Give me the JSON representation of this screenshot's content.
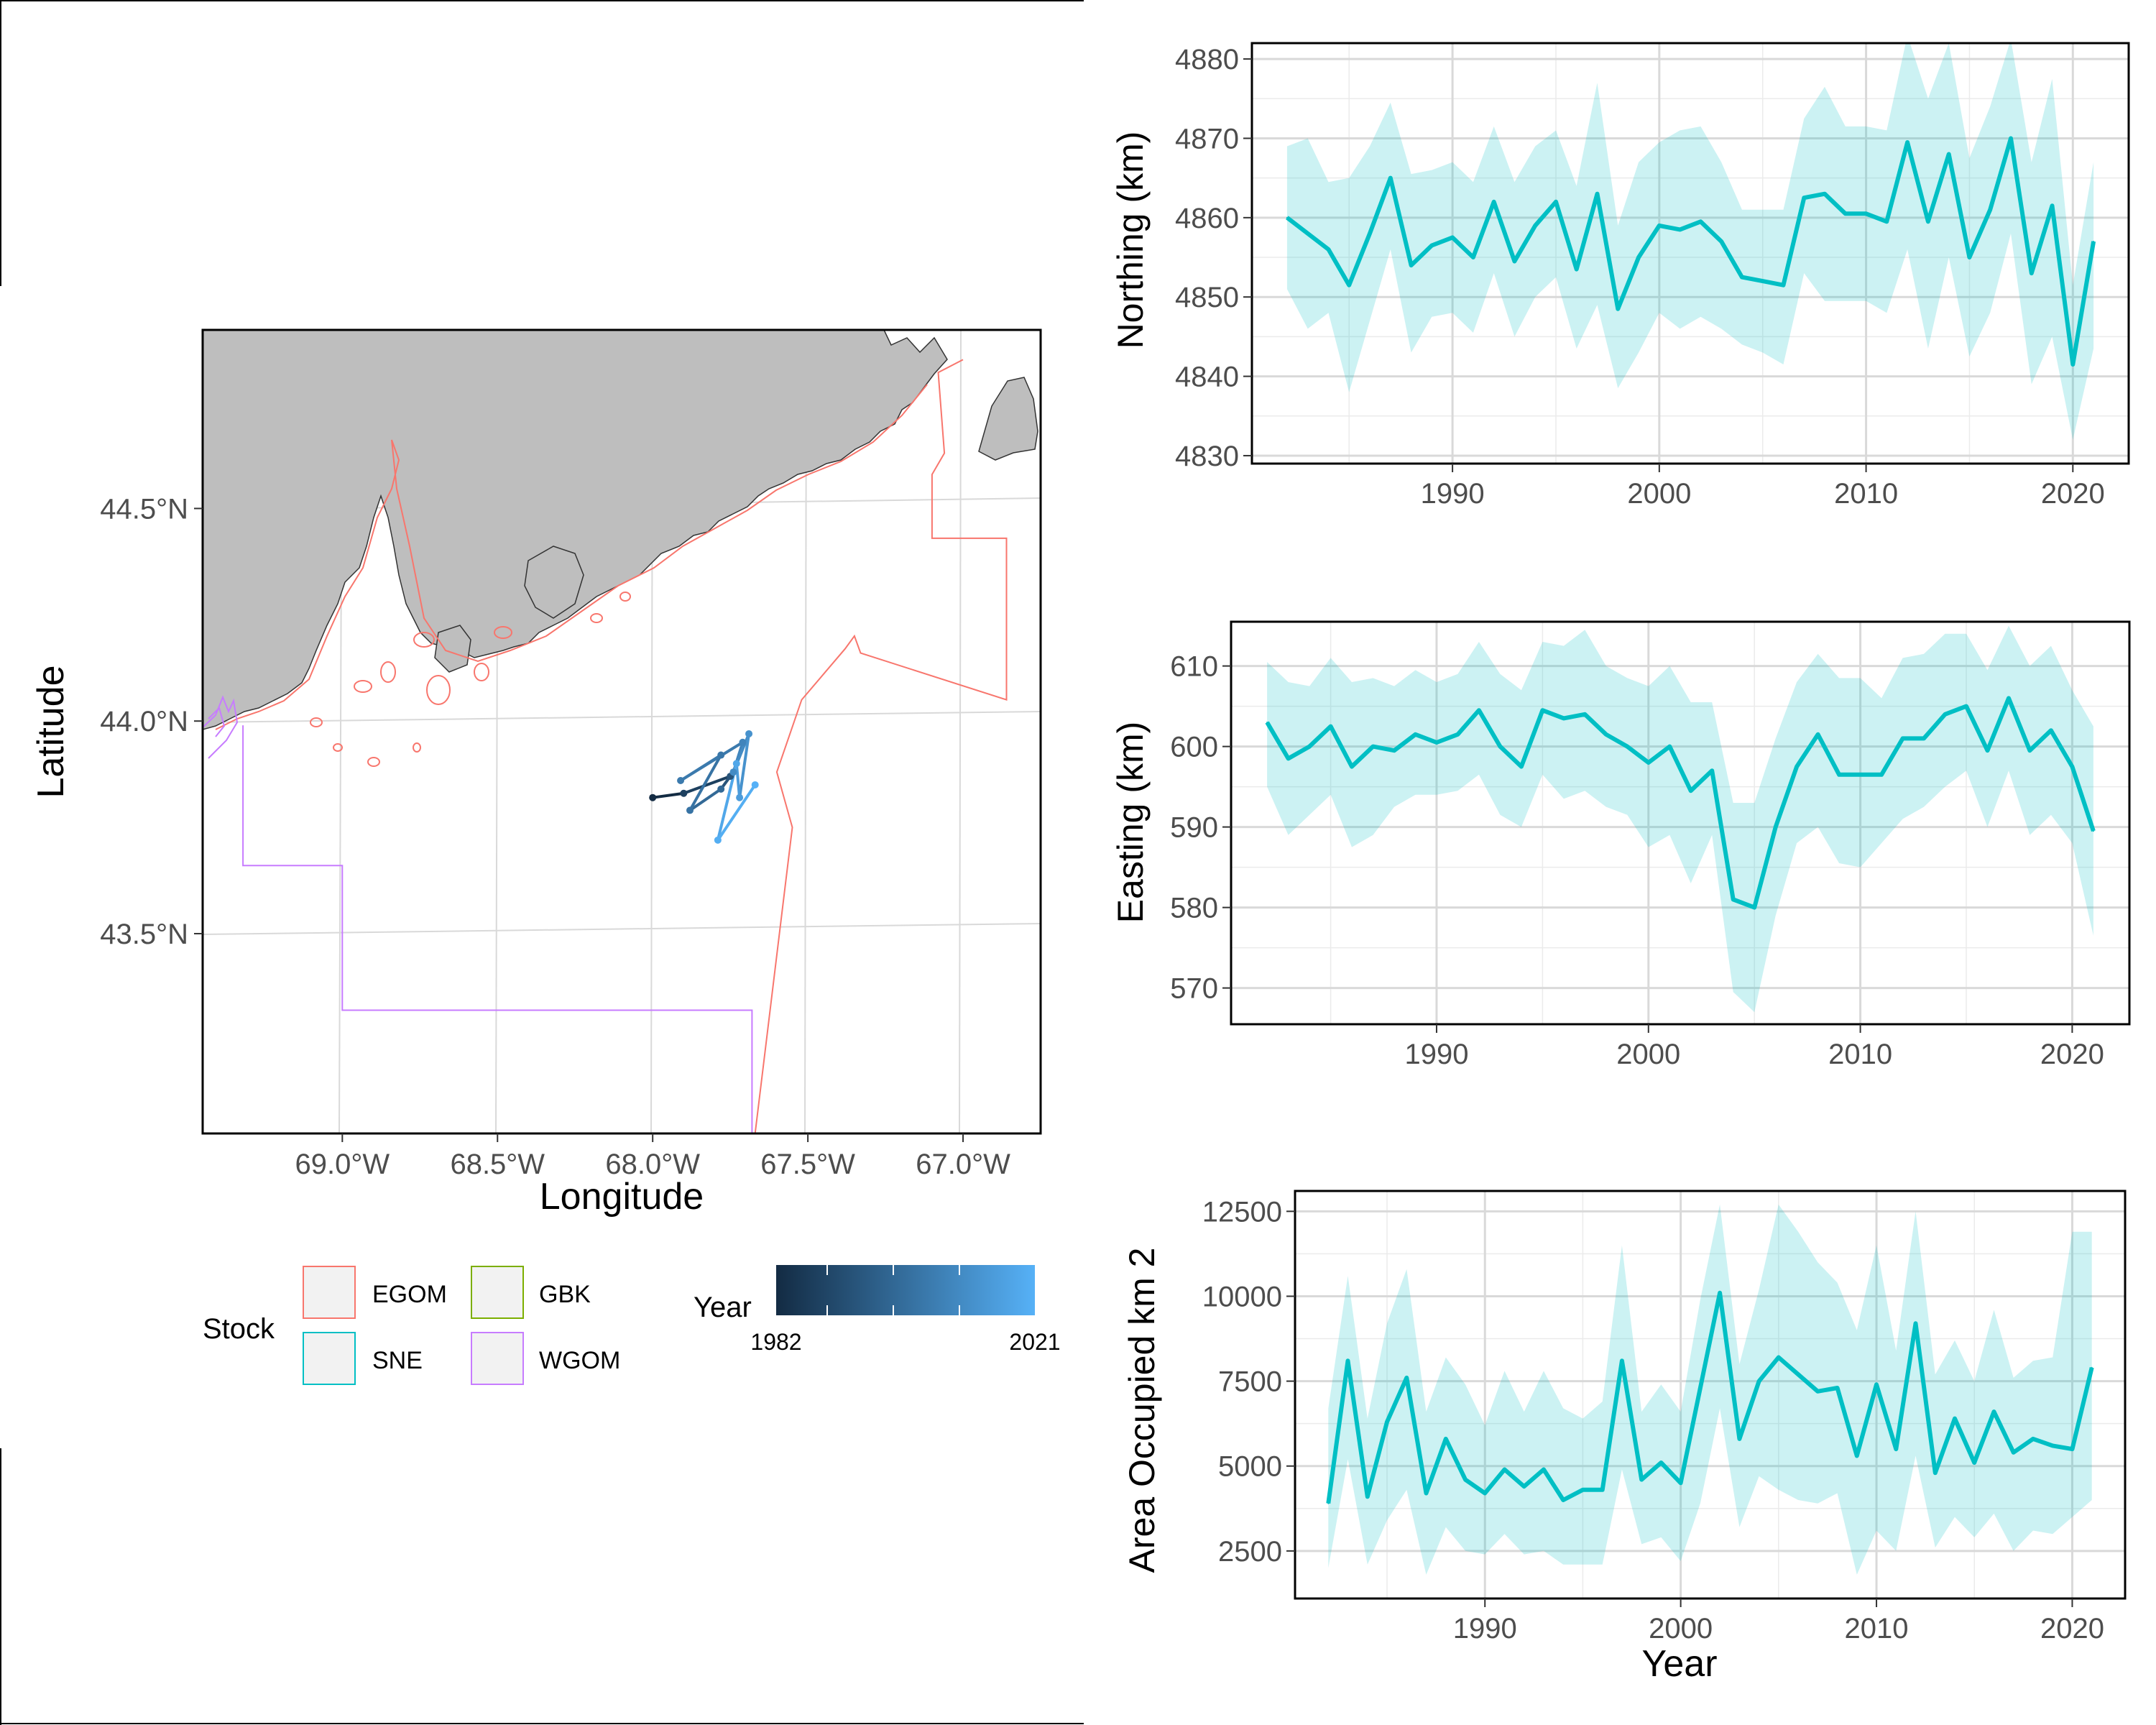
{
  "colors": {
    "line": "#00BFC4",
    "ribbon": "#00BFC4",
    "land": "#BEBEBE",
    "egom": "#F8766D",
    "sne": "#00BFC4",
    "gbk": "#7CAE00",
    "wgom": "#C77CFF",
    "grid": "#D9D9D9",
    "axis_text": "#4D4D4D",
    "year_low": "#132B43",
    "year_high": "#56B1F7"
  },
  "chart_data": [
    {
      "type": "map",
      "xlabel": "Longitude",
      "ylabel": "Latitude",
      "xlim": [
        -69.45,
        -66.75
      ],
      "ylim": [
        43.03,
        44.92
      ],
      "x_ticks": [
        -69.0,
        -68.5,
        -68.0,
        -67.5,
        -67.0
      ],
      "x_tick_labels": [
        "69.0°W",
        "68.5°W",
        "68.0°W",
        "67.5°W",
        "67.0°W"
      ],
      "y_ticks": [
        43.5,
        44.0,
        44.5
      ],
      "y_tick_labels": [
        "43.5°N",
        "44.0°N",
        "44.5°N"
      ],
      "stock_boundaries": {
        "WGOM": [
          [
            -69.32,
            43.99
          ],
          [
            -69.32,
            43.66
          ],
          [
            -69.0,
            43.66
          ],
          [
            -69.0,
            43.32
          ],
          [
            -67.68,
            43.32
          ],
          [
            -67.68,
            43.03
          ]
        ],
        "EGOM": [
          [
            -67.67,
            43.03
          ],
          [
            -67.55,
            43.75
          ],
          [
            -67.6,
            43.88
          ],
          [
            -67.52,
            44.05
          ],
          [
            -67.38,
            44.17
          ],
          [
            -67.35,
            44.2
          ],
          [
            -67.33,
            44.16
          ],
          [
            -66.86,
            44.05
          ],
          [
            -66.86,
            44.43
          ],
          [
            -67.1,
            44.43
          ],
          [
            -67.1,
            44.58
          ],
          [
            -67.06,
            44.63
          ],
          [
            -67.08,
            44.82
          ],
          [
            -67.0,
            44.85
          ]
        ]
      },
      "centroid_track": [
        {
          "year": 1982,
          "lon": -68.0,
          "lat": 43.82
        },
        {
          "year": 1988,
          "lon": -67.9,
          "lat": 43.83
        },
        {
          "year": 1994,
          "lon": -67.75,
          "lat": 43.87
        },
        {
          "year": 2000,
          "lon": -67.78,
          "lat": 43.84
        },
        {
          "year": 2003,
          "lon": -67.88,
          "lat": 43.79
        },
        {
          "year": 2004,
          "lon": -67.78,
          "lat": 43.92
        },
        {
          "year": 2005,
          "lon": -67.91,
          "lat": 43.86
        },
        {
          "year": 2008,
          "lon": -67.71,
          "lat": 43.95
        },
        {
          "year": 2010,
          "lon": -67.74,
          "lat": 43.88
        },
        {
          "year": 2012,
          "lon": -67.69,
          "lat": 43.97
        },
        {
          "year": 2015,
          "lon": -67.72,
          "lat": 43.82
        },
        {
          "year": 2018,
          "lon": -67.73,
          "lat": 43.9
        },
        {
          "year": 2020,
          "lon": -67.79,
          "lat": 43.72
        },
        {
          "year": 2021,
          "lon": -67.67,
          "lat": 43.85
        }
      ]
    },
    {
      "type": "line",
      "title": "",
      "xlabel": "",
      "ylabel": "Northing (km)",
      "xlim": [
        1980.3,
        2022.7
      ],
      "ylim": [
        4829,
        4882
      ],
      "x_ticks": [
        1990,
        2000,
        2010,
        2020
      ],
      "y_ticks": [
        4830,
        4840,
        4850,
        4860,
        4870,
        4880
      ],
      "x": [
        1982,
        1983,
        1984,
        1985,
        1986,
        1987,
        1988,
        1989,
        1990,
        1991,
        1992,
        1993,
        1994,
        1995,
        1996,
        1997,
        1998,
        1999,
        2000,
        2001,
        2002,
        2003,
        2004,
        2005,
        2006,
        2007,
        2008,
        2009,
        2010,
        2011,
        2012,
        2013,
        2014,
        2015,
        2016,
        2017,
        2018,
        2019,
        2020,
        2021
      ],
      "series": [
        {
          "name": "estimate",
          "values": [
            4860,
            4858,
            4856,
            4851.5,
            4858,
            4865,
            4854,
            4856.5,
            4857.5,
            4855,
            4862,
            4854.5,
            4859,
            4862,
            4853.5,
            4863,
            4848.5,
            4855,
            4859,
            4858.5,
            4859.5,
            4857,
            4852.5,
            4852,
            4851.5,
            4862.5,
            4863,
            4860.5,
            4860.5,
            4859.5,
            4869.5,
            4859.5,
            4868,
            4855,
            4861,
            4870,
            4853,
            4861.5,
            4841.5,
            4857
          ]
        },
        {
          "name": "lower",
          "values": [
            4851,
            4846,
            4848,
            4838,
            4847,
            4856,
            4843,
            4847.5,
            4848,
            4845.5,
            4853,
            4845,
            4850,
            4852.5,
            4843.5,
            4849,
            4838.5,
            4843,
            4848,
            4846,
            4847.5,
            4846,
            4844,
            4843,
            4841.5,
            4853,
            4849.5,
            4849.5,
            4849.5,
            4848,
            4856,
            4843.5,
            4855,
            4842.5,
            4848,
            4858,
            4839,
            4845,
            4832,
            4843.5
          ]
        },
        {
          "name": "upper",
          "values": [
            4869,
            4870,
            4864.5,
            4865,
            4869,
            4874.5,
            4865.5,
            4866,
            4867,
            4864.5,
            4871.5,
            4864.5,
            4869,
            4871,
            4864,
            4877,
            4859,
            4867,
            4869.5,
            4871,
            4871.5,
            4867,
            4861,
            4861,
            4861,
            4872.5,
            4876.5,
            4871.5,
            4871.5,
            4871,
            4883,
            4875,
            4882,
            4867.5,
            4874,
            4882.5,
            4867,
            4877.5,
            4851.5,
            4867
          ]
        }
      ]
    },
    {
      "type": "line",
      "title": "",
      "xlabel": "",
      "ylabel": "Easting (km)",
      "xlim": [
        1980.3,
        2022.7
      ],
      "ylim": [
        565.5,
        615.5
      ],
      "x_ticks": [
        1990,
        2000,
        2010,
        2020
      ],
      "y_ticks": [
        570,
        580,
        590,
        600,
        610
      ],
      "x": [
        1982,
        1983,
        1984,
        1985,
        1986,
        1987,
        1988,
        1989,
        1990,
        1991,
        1992,
        1993,
        1994,
        1995,
        1996,
        1997,
        1998,
        1999,
        2000,
        2001,
        2002,
        2003,
        2004,
        2005,
        2006,
        2007,
        2008,
        2009,
        2010,
        2011,
        2012,
        2013,
        2014,
        2015,
        2016,
        2017,
        2018,
        2019,
        2020,
        2021
      ],
      "series": [
        {
          "name": "estimate",
          "values": [
            603,
            598.5,
            600,
            602.5,
            597.5,
            600,
            599.5,
            601.5,
            600.5,
            601.5,
            604.5,
            600,
            597.5,
            604.5,
            603.5,
            604,
            601.5,
            600,
            598,
            600,
            594.5,
            597,
            581,
            580,
            590,
            597.5,
            601.5,
            596.5,
            596.5,
            596.5,
            601,
            601,
            604,
            605,
            599.5,
            606,
            599.5,
            602,
            597.5,
            589.5
          ]
        },
        {
          "name": "lower",
          "values": [
            595,
            589,
            591.5,
            594,
            587.5,
            589,
            592.5,
            594,
            594,
            594.5,
            596.5,
            591.5,
            590,
            596.5,
            593.5,
            594.5,
            592.5,
            591.5,
            587.5,
            589,
            583,
            589,
            569.5,
            567,
            579,
            588,
            590,
            585.5,
            585,
            588,
            591,
            592.5,
            595,
            597,
            590,
            597,
            589,
            591.5,
            588,
            576.5
          ]
        },
        {
          "name": "upper",
          "values": [
            610.5,
            608,
            607.5,
            611,
            608,
            608.5,
            607.5,
            609.5,
            608,
            609,
            613,
            609,
            607,
            613,
            612.5,
            614.5,
            610,
            608.5,
            607.5,
            610,
            605.5,
            605.5,
            593,
            593,
            601,
            608,
            611.5,
            608.5,
            608.5,
            606,
            611,
            611.5,
            614,
            614,
            609.5,
            615,
            610,
            612.5,
            607,
            602.5
          ]
        }
      ]
    },
    {
      "type": "line",
      "title": "",
      "xlabel": "Year",
      "ylabel": "Area Occupied km 2",
      "xlim": [
        1980.3,
        2022.7
      ],
      "ylim": [
        1100,
        13100
      ],
      "x_ticks": [
        1990,
        2000,
        2010,
        2020
      ],
      "y_ticks": [
        2500,
        5000,
        7500,
        10000,
        12500
      ],
      "x": [
        1982,
        1983,
        1984,
        1985,
        1986,
        1987,
        1988,
        1989,
        1990,
        1991,
        1992,
        1993,
        1994,
        1995,
        1996,
        1997,
        1998,
        1999,
        2000,
        2001,
        2002,
        2003,
        2004,
        2005,
        2006,
        2007,
        2008,
        2009,
        2010,
        2011,
        2012,
        2013,
        2014,
        2015,
        2016,
        2017,
        2018,
        2019,
        2020,
        2021
      ],
      "series": [
        {
          "name": "estimate",
          "values": [
            3900,
            8100,
            4100,
            6300,
            7600,
            4200,
            5800,
            4600,
            4200,
            4900,
            4400,
            4900,
            4000,
            4300,
            4300,
            8100,
            4600,
            5100,
            4500,
            7300,
            10100,
            5800,
            7500,
            8200,
            7700,
            7200,
            7300,
            5300,
            7400,
            5500,
            9200,
            4800,
            6400,
            5100,
            6600,
            5400,
            5800,
            5600,
            5500,
            7900
          ]
        },
        {
          "name": "lower",
          "values": [
            2000,
            5200,
            2100,
            3400,
            4300,
            1800,
            3200,
            2500,
            2400,
            3000,
            2400,
            2500,
            2100,
            2100,
            2100,
            4900,
            2700,
            2900,
            2200,
            3900,
            6700,
            3200,
            4700,
            4300,
            4000,
            3900,
            4200,
            1800,
            3100,
            2500,
            5300,
            2600,
            3500,
            2900,
            3600,
            2500,
            3100,
            3000,
            3500,
            4000
          ]
        },
        {
          "name": "upper",
          "values": [
            6700,
            10600,
            6400,
            9200,
            10800,
            6600,
            8200,
            7400,
            6200,
            7800,
            6600,
            7800,
            6700,
            6400,
            6900,
            11500,
            6600,
            7400,
            6600,
            9900,
            12700,
            8000,
            10200,
            12700,
            11900,
            11000,
            10400,
            9000,
            11500,
            8400,
            12500,
            7700,
            8700,
            7500,
            9600,
            7600,
            8100,
            8200,
            11900,
            11900
          ]
        }
      ]
    }
  ],
  "map_legend": {
    "stock_title": "Stock",
    "stock_entries": [
      "EGOM",
      "GBK",
      "SNE",
      "WGOM"
    ],
    "year_title": "Year",
    "year_min_label": "1982",
    "year_max_label": "2021"
  }
}
